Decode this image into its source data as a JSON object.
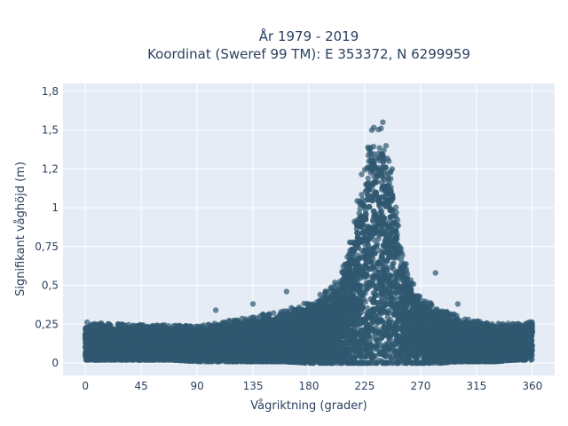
{
  "chart_data": {
    "type": "scatter",
    "title_line1": "År 1979 - 2019",
    "title_line2": "Koordinat (Sweref 99 TM): E 353372, N 6299959",
    "xlabel": "Vågriktning (grader)",
    "ylabel": "Signifikant våghöjd (m)",
    "xlim": [
      -18,
      378
    ],
    "ylim": [
      -0.08,
      1.8
    ],
    "xticks": [
      0,
      45,
      90,
      135,
      180,
      225,
      270,
      315,
      360
    ],
    "xtick_labels": [
      "0",
      "45",
      "90",
      "135",
      "180",
      "225",
      "270",
      "315",
      "360"
    ],
    "yticks": [
      0,
      0.25,
      0.5,
      0.75,
      1,
      1.25,
      1.5,
      1.75
    ],
    "ytick_labels": [
      "0",
      "0,25",
      "0,5",
      "0,75",
      "1",
      "1,2",
      "1,5",
      "1,8"
    ],
    "grid": true,
    "marker_color": "#2f5870",
    "background_color": "#e5ecf6",
    "envelope": {
      "x": [
        0,
        20,
        45,
        70,
        90,
        110,
        135,
        160,
        180,
        195,
        205,
        215,
        220,
        225,
        230,
        235,
        240,
        245,
        250,
        255,
        260,
        270,
        285,
        300,
        315,
        330,
        345,
        360
      ],
      "y_max": [
        0.28,
        0.27,
        0.26,
        0.26,
        0.25,
        0.28,
        0.32,
        0.36,
        0.42,
        0.5,
        0.6,
        0.9,
        1.2,
        1.45,
        1.62,
        1.68,
        1.66,
        1.5,
        1.1,
        0.8,
        0.62,
        0.45,
        0.38,
        0.32,
        0.29,
        0.27,
        0.27,
        0.28
      ],
      "y_min": [
        0.02,
        0.02,
        0.02,
        0.02,
        0.01,
        0.01,
        0.01,
        0.01,
        0.0,
        0.0,
        0.0,
        0.0,
        0.0,
        0.0,
        0.0,
        0.0,
        0.0,
        0.0,
        0.0,
        0.0,
        0.0,
        0.0,
        0.0,
        0.01,
        0.01,
        0.01,
        0.02,
        0.02
      ]
    },
    "outliers": [
      {
        "x": 282,
        "y": 0.58
      },
      {
        "x": 162,
        "y": 0.46
      },
      {
        "x": 105,
        "y": 0.34
      },
      {
        "x": 135,
        "y": 0.38
      },
      {
        "x": 300,
        "y": 0.38
      }
    ]
  }
}
